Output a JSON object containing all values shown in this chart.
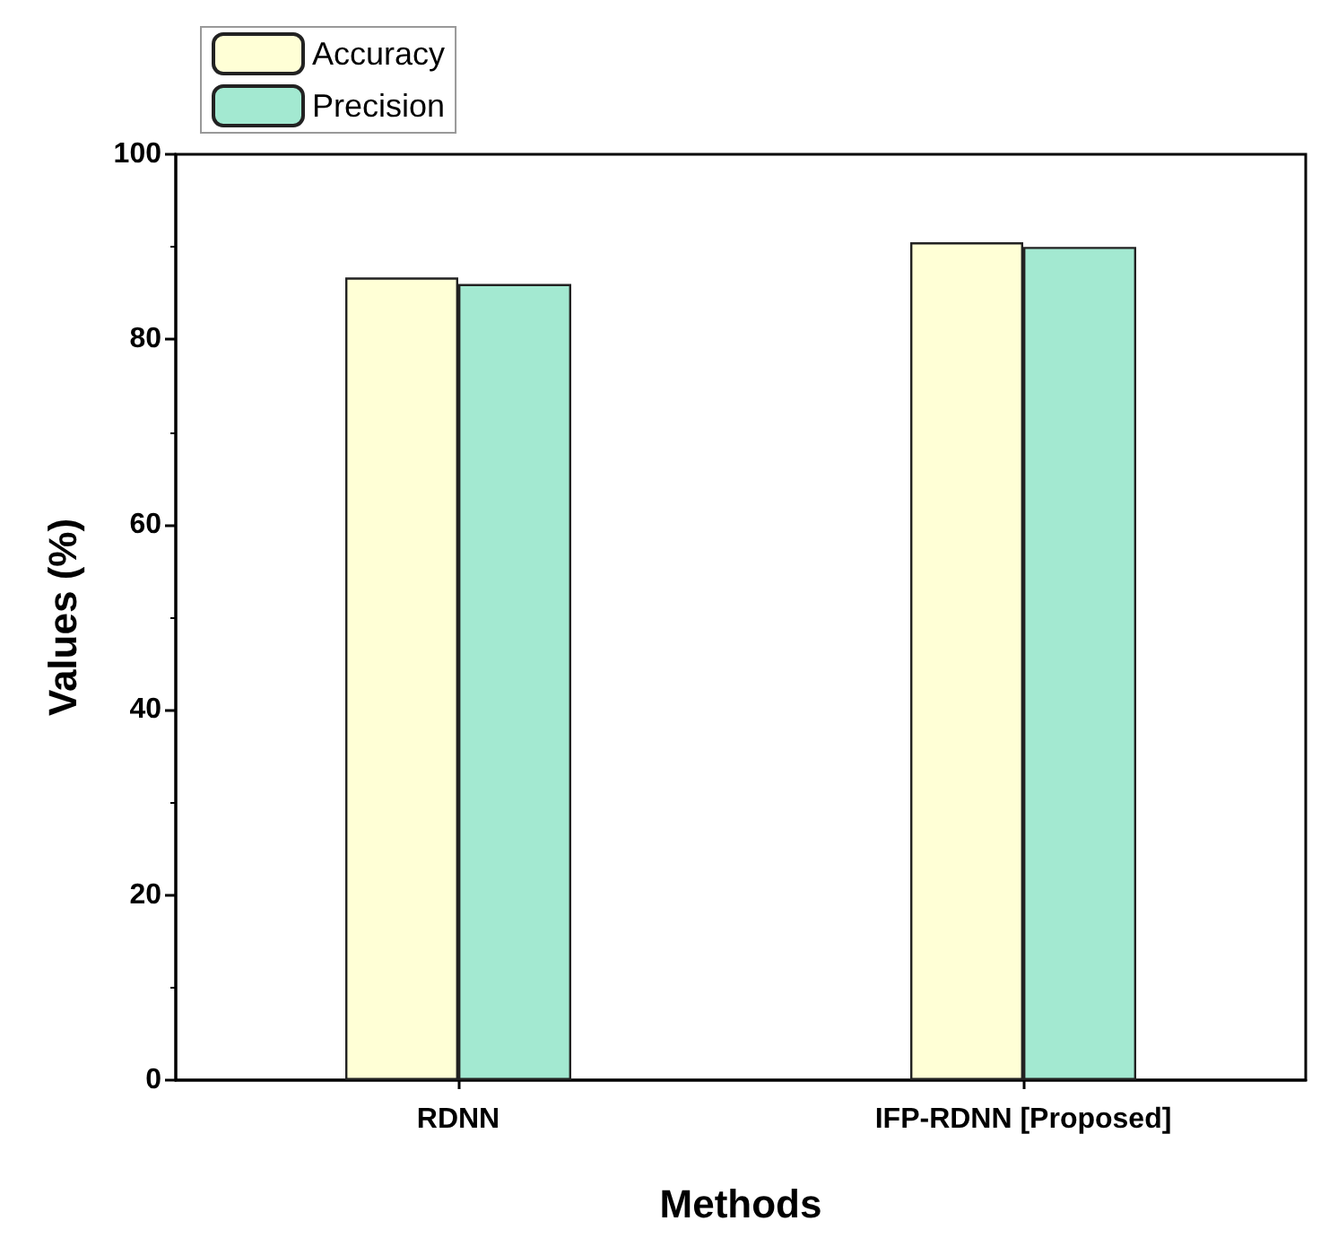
{
  "chart_data": {
    "type": "bar",
    "xlabel": "Methods",
    "ylabel": "Values (%)",
    "categories": [
      "RDNN",
      "IFP-RDNN [Proposed]"
    ],
    "series": [
      {
        "name": "Accuracy",
        "color": "#ffffd6",
        "values": [
          86.7,
          90.5
        ]
      },
      {
        "name": "Precision",
        "color": "#a3e9d1",
        "values": [
          86.0,
          90.0
        ]
      }
    ],
    "ylim": [
      0,
      100
    ],
    "yticks": [
      0,
      20,
      40,
      60,
      80,
      100
    ],
    "grid": false,
    "legend": "top left"
  }
}
